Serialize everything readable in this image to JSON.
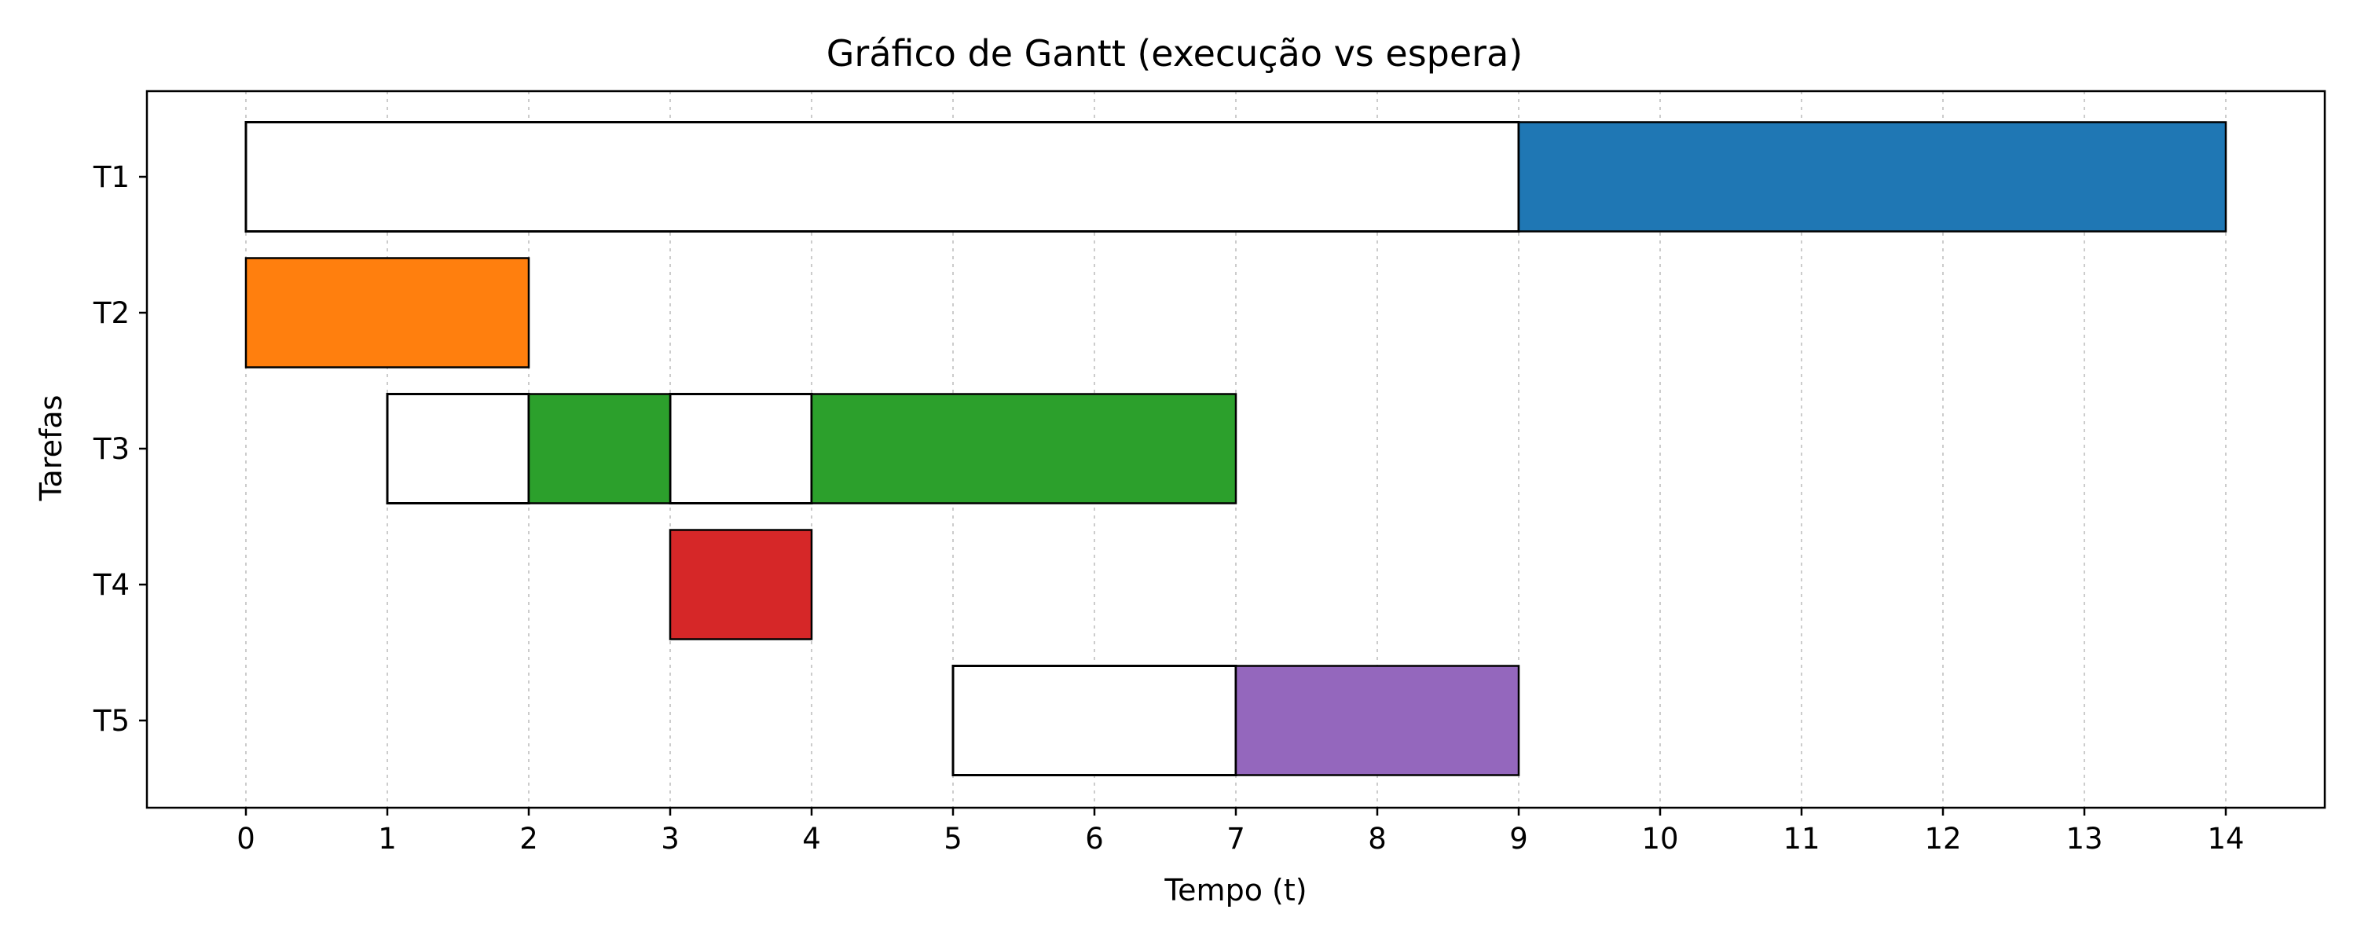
{
  "chart_data": {
    "type": "bar",
    "orientation": "horizontal",
    "subtype": "gantt",
    "title": "Gráfico de Gantt (execução vs espera)",
    "xlabel": "Tempo (t)",
    "ylabel": "Tarefas",
    "xlim": [
      -0.7,
      14.7
    ],
    "xticks": [
      0,
      1,
      2,
      3,
      4,
      5,
      6,
      7,
      8,
      9,
      10,
      11,
      12,
      13,
      14
    ],
    "grid": "x-axis dotted",
    "legend": "none",
    "tasks": [
      {
        "label": "T1",
        "color": "#1f77b4",
        "segments": [
          {
            "state": "espera",
            "start": 0,
            "end": 9
          },
          {
            "state": "execução",
            "start": 9,
            "end": 14
          }
        ]
      },
      {
        "label": "T2",
        "color": "#ff7f0e",
        "segments": [
          {
            "state": "execução",
            "start": 0,
            "end": 2
          }
        ]
      },
      {
        "label": "T3",
        "color": "#2ca02c",
        "segments": [
          {
            "state": "espera",
            "start": 1,
            "end": 2
          },
          {
            "state": "execução",
            "start": 2,
            "end": 3
          },
          {
            "state": "espera",
            "start": 3,
            "end": 4
          },
          {
            "state": "execução",
            "start": 4,
            "end": 7
          }
        ]
      },
      {
        "label": "T4",
        "color": "#d62728",
        "segments": [
          {
            "state": "execução",
            "start": 3,
            "end": 4
          }
        ]
      },
      {
        "label": "T5",
        "color": "#9467bd",
        "segments": [
          {
            "state": "espera",
            "start": 5,
            "end": 7
          },
          {
            "state": "execução",
            "start": 7,
            "end": 9
          }
        ]
      }
    ]
  }
}
